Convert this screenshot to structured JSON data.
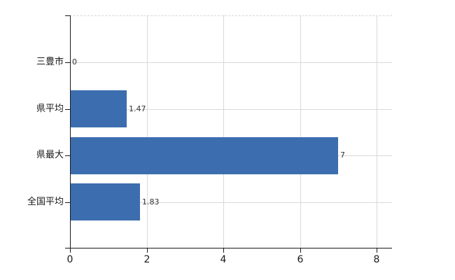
{
  "chart_data": {
    "type": "bar",
    "orientation": "horizontal",
    "title": "",
    "categories": [
      "三豊市",
      "県平均",
      "県最大",
      "全国平均"
    ],
    "values": [
      0,
      1.47,
      7,
      1.83
    ],
    "value_labels": [
      "0",
      "1.47",
      "7",
      "1.83"
    ],
    "x_ticks": [
      0,
      2,
      4,
      6,
      8
    ],
    "x_tick_labels": [
      "0",
      "2",
      "4",
      "6",
      "8"
    ],
    "xlim": [
      0,
      8.4
    ],
    "grid": true,
    "legend": false,
    "colors": {
      "bar": "#3C6EAF",
      "gridline": "#d9d9d9",
      "axis": "#1a1a1a",
      "text": "#333333"
    }
  }
}
